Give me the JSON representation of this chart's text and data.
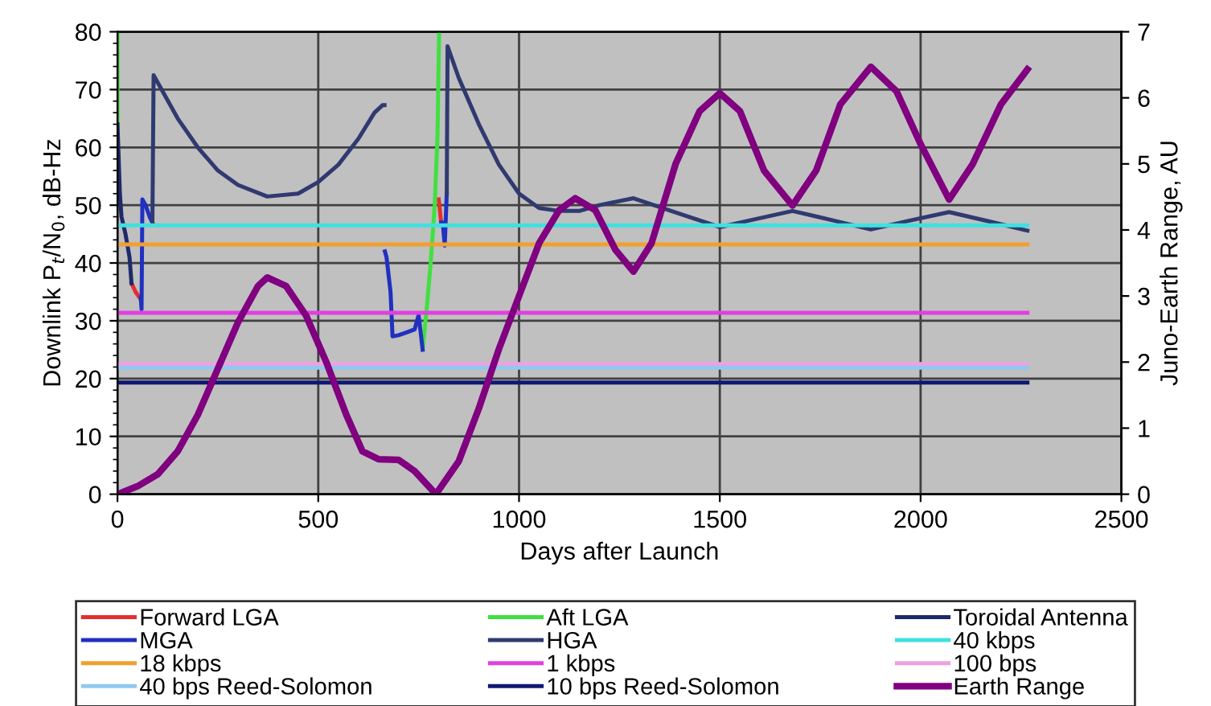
{
  "chart_data": {
    "type": "line",
    "xlabel": "Days after Launch",
    "ylabel": "Downlink P$_{t}$/N$_{0}$, dB-Hz",
    "y2label": "Juno-Earth Range, AU",
    "xlim": [
      0,
      2500
    ],
    "xticks": [
      0,
      500,
      1000,
      1500,
      2000,
      2500
    ],
    "ylim": [
      0,
      80
    ],
    "yticks": [
      0,
      10,
      20,
      30,
      40,
      50,
      60,
      70,
      80
    ],
    "y2lim": [
      0,
      7
    ],
    "y2ticks": [
      0,
      1,
      2,
      3,
      4,
      5,
      6,
      7
    ],
    "grid": true,
    "legend": "bottom",
    "line_style": "solid",
    "marker": "none",
    "series": [
      {
        "name": "Forward LGA",
        "color": "#e03030",
        "x": [
          35,
          45,
          55,
          58,
          800,
          803,
          806
        ],
        "values": [
          36.5,
          35,
          34,
          null,
          51,
          49,
          47
        ]
      },
      {
        "name": "Aft LGA",
        "color": "#40e040",
        "x": [
          0,
          0,
          5,
          760,
          770,
          780,
          790,
          797,
          801
        ],
        "values": [
          80,
          64,
          null,
          25,
          32,
          40,
          50,
          62,
          80
        ]
      },
      {
        "name": "Toroidal Antenna",
        "color": "#1f2a6b",
        "x": [
          0,
          3,
          6,
          10,
          20,
          30,
          35
        ],
        "values": [
          64,
          58,
          52,
          48,
          45,
          41,
          36.5
        ]
      },
      {
        "name": "MGA",
        "color": "#2030c0",
        "x": [
          58,
          60,
          62,
          70,
          80,
          87,
          90,
          660,
          666,
          670,
          680,
          685,
          700,
          720,
          740,
          750,
          755,
          760,
          780,
          806,
          810,
          815,
          820
        ],
        "values": [
          34,
          32,
          51,
          50,
          48,
          47,
          null,
          null,
          42,
          41,
          35,
          27.3,
          27.5,
          28,
          28.5,
          31,
          28,
          25,
          null,
          47,
          47,
          43,
          52
        ]
      },
      {
        "name": "HGA",
        "color": "#303a70",
        "x": [
          87,
          90,
          150,
          200,
          250,
          300,
          373,
          450,
          500,
          550,
          600,
          640,
          660,
          665,
          700,
          820,
          822,
          850,
          900,
          950,
          1000,
          1050,
          1100,
          1150,
          1200,
          1285,
          1400,
          1500,
          1590,
          1681,
          1780,
          1876,
          1970,
          2071,
          2170,
          2266
        ],
        "values": [
          47,
          72.5,
          65,
          60,
          56,
          53.5,
          51.5,
          52,
          54,
          57,
          61.5,
          66,
          67.3,
          67.3,
          null,
          52,
          77.5,
          72,
          64,
          57,
          52,
          49.5,
          49,
          49,
          50,
          51.2,
          48.5,
          46.2,
          47.6,
          49,
          47.4,
          45.8,
          47.3,
          48.8,
          47.2,
          45.6
        ]
      },
      {
        "name": "40 kbps",
        "color": "#40e0e0",
        "x": [
          0,
          2266
        ],
        "values": [
          46.5,
          46.5
        ]
      },
      {
        "name": "18 kbps",
        "color": "#f0a030",
        "x": [
          0,
          2266
        ],
        "values": [
          43.2,
          43.2
        ]
      },
      {
        "name": "1 kbps",
        "color": "#e040e0",
        "x": [
          0,
          2266
        ],
        "values": [
          31.4,
          31.4
        ]
      },
      {
        "name": "100 bps",
        "color": "#f0a0e0",
        "x": [
          0,
          2266
        ],
        "values": [
          22.5,
          22.5
        ]
      },
      {
        "name": "40 bps Reed-Solomon",
        "color": "#90c8f0",
        "x": [
          0,
          2266
        ],
        "values": [
          21.9,
          21.9
        ]
      },
      {
        "name": "10 bps Reed-Solomon",
        "color": "#101870",
        "x": [
          0,
          2266
        ],
        "values": [
          19.3,
          19.3
        ]
      },
      {
        "name": "Earth Range",
        "color": "#800080",
        "axis": "y2",
        "x": [
          0,
          50,
          100,
          150,
          200,
          250,
          300,
          350,
          373,
          420,
          470,
          520,
          570,
          610,
          650,
          700,
          740,
          793,
          850,
          900,
          950,
          1000,
          1050,
          1100,
          1140,
          1190,
          1240,
          1285,
          1330,
          1390,
          1450,
          1500,
          1550,
          1610,
          1681,
          1740,
          1800,
          1876,
          1940,
          2000,
          2071,
          2130,
          2200,
          2266
        ],
        "values": [
          0,
          0.12,
          0.3,
          0.65,
          1.2,
          1.9,
          2.6,
          3.15,
          3.28,
          3.15,
          2.7,
          2.0,
          1.2,
          0.65,
          0.53,
          0.52,
          0.35,
          0,
          0.5,
          1.3,
          2.2,
          3.0,
          3.8,
          4.3,
          4.48,
          4.3,
          3.7,
          3.37,
          3.8,
          5.0,
          5.8,
          6.07,
          5.8,
          4.9,
          4.37,
          4.9,
          5.9,
          6.47,
          6.1,
          5.3,
          4.46,
          5.0,
          5.9,
          6.43
        ]
      }
    ]
  }
}
